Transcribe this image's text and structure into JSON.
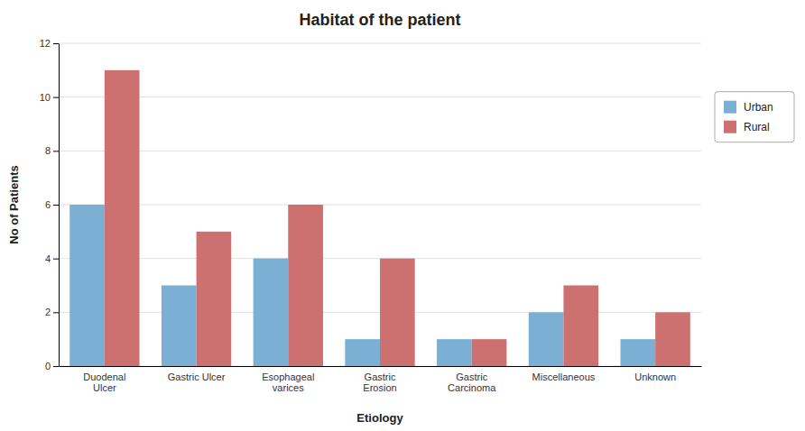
{
  "chart_data": {
    "type": "bar",
    "title": "Habitat of the patient",
    "xlabel": "Etiology",
    "ylabel": "No of Patients",
    "categories": [
      "Duodenal\nUlcer",
      "Gastric Ulcer",
      "Esophageal\nvarices",
      "Gastric\nErosion",
      "Gastric\nCarcinoma",
      "Miscellaneous",
      "Unknown"
    ],
    "series": [
      {
        "name": "Urban",
        "color": "#7bafd4",
        "values": [
          6,
          3,
          4,
          1,
          1,
          2,
          1
        ]
      },
      {
        "name": "Rural",
        "color": "#cd7070",
        "values": [
          11,
          5,
          6,
          4,
          1,
          3,
          2
        ]
      }
    ],
    "ylim": [
      0,
      12
    ],
    "yticks": [
      0,
      2,
      4,
      6,
      8,
      10,
      12
    ],
    "grid": true,
    "legend": "right"
  }
}
